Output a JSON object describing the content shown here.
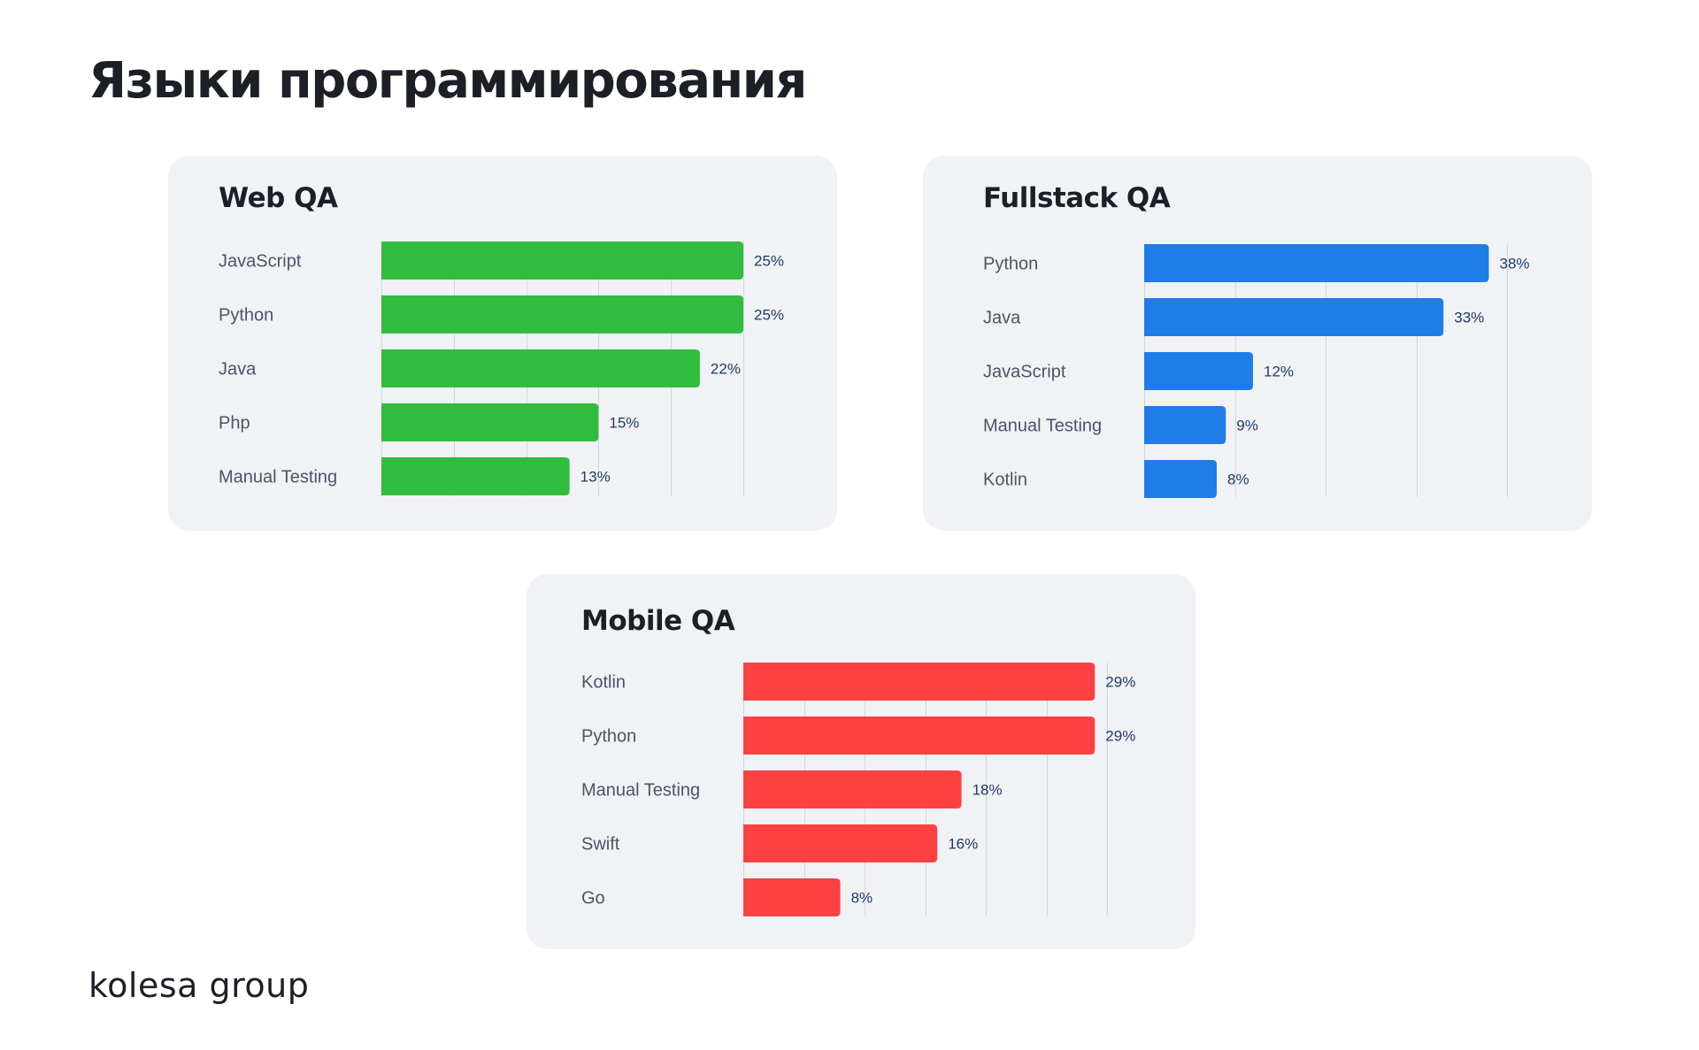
{
  "page": {
    "title": "Языки программирования",
    "logo_text": "kolesa group"
  },
  "chart_data": [
    {
      "type": "bar",
      "orientation": "horizontal",
      "title": "Web QA",
      "categories": [
        "JavaScript",
        "Python",
        "Java",
        "Php",
        "Manual Testing"
      ],
      "values": [
        25,
        25,
        22,
        15,
        13
      ],
      "value_labels": [
        "25%",
        "25%",
        "22%",
        "15%",
        "13%"
      ],
      "unit": "%",
      "xlim": [
        0,
        25
      ],
      "gridlines": [
        0,
        5,
        10,
        15,
        20,
        25
      ],
      "color": "#30bd3e",
      "grid": true,
      "legend": "none"
    },
    {
      "type": "bar",
      "orientation": "horizontal",
      "title": "Fullstack QA",
      "categories": [
        "Python",
        "Java",
        "JavaScript",
        "Manual Testing",
        "Kotlin"
      ],
      "values": [
        38,
        33,
        12,
        9,
        8
      ],
      "value_labels": [
        "38%",
        "33%",
        "12%",
        "9%",
        "8%"
      ],
      "unit": "%",
      "xlim": [
        0,
        40
      ],
      "gridlines": [
        0,
        10,
        20,
        30,
        40
      ],
      "color": "#1e7de8",
      "grid": true,
      "legend": "none"
    },
    {
      "type": "bar",
      "orientation": "horizontal",
      "title": "Mobile QA",
      "categories": [
        "Kotlin",
        "Python",
        "Manual Testing",
        "Swift",
        "Go"
      ],
      "values": [
        29,
        29,
        18,
        16,
        8
      ],
      "value_labels": [
        "29%",
        "29%",
        "18%",
        "16%",
        "8%"
      ],
      "unit": "%",
      "xlim": [
        0,
        30
      ],
      "gridlines": [
        0,
        5,
        10,
        15,
        20,
        25,
        30
      ],
      "color": "#fd4143",
      "grid": true,
      "legend": "none"
    }
  ]
}
